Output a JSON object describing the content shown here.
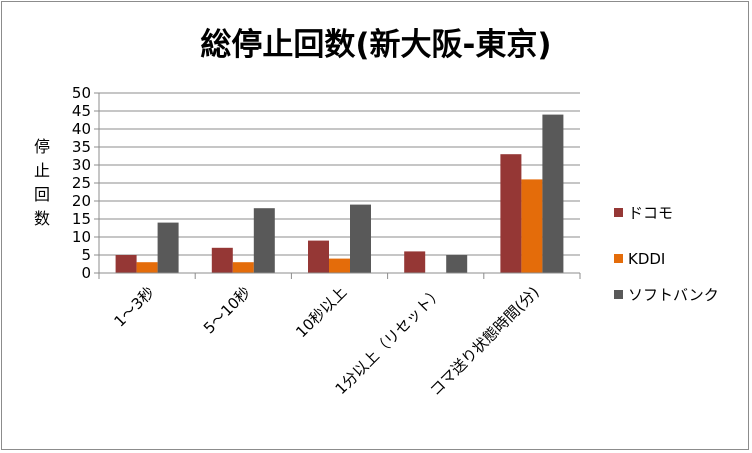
{
  "chart_data": {
    "type": "bar",
    "title": "総停止回数(新大阪-東京)",
    "ylabel": "停止回数",
    "xlabel": "",
    "ylim": [
      0,
      50
    ],
    "yticks": [
      0,
      5,
      10,
      15,
      20,
      25,
      30,
      35,
      40,
      45,
      50
    ],
    "grid": true,
    "legend_position": "right",
    "categories": [
      "1～3秒",
      "5～10秒",
      "10秒以上",
      "1分以上（リセット）",
      "コマ送り状態時間(分)"
    ],
    "series": [
      {
        "name": "ドコモ",
        "color": "#953735",
        "values": [
          5,
          7,
          9,
          6,
          33
        ]
      },
      {
        "name": "KDDI",
        "color": "#e46c0a",
        "values": [
          3,
          3,
          4,
          0,
          26
        ]
      },
      {
        "name": "ソフトバンク",
        "color": "#595959",
        "values": [
          14,
          18,
          19,
          5,
          44
        ]
      }
    ]
  }
}
